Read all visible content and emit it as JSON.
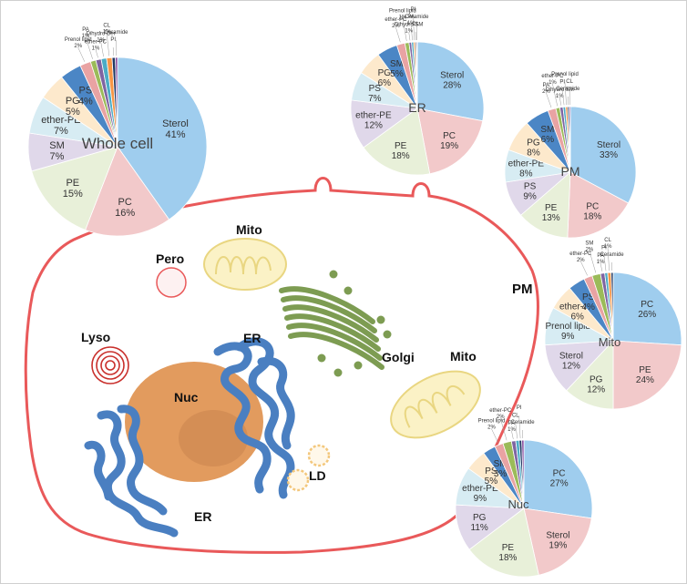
{
  "colors": {
    "membrane": "#e9595a",
    "er": "#4a7fc1",
    "er_dark": "#26527e",
    "nucleus": "#e29b5e",
    "nucleolus": "#c8834f",
    "mito_fill": "#fbf2c6",
    "mito_stroke": "#e9d681",
    "golgi": "#7d9c52",
    "lyso": "#c9302c",
    "ld": "#f3c77c"
  },
  "organelle_labels": {
    "pero": "Pero",
    "mito_top": "Mito",
    "mito_right": "Mito",
    "lyso": "Lyso",
    "er_top": "ER",
    "er_bottom": "ER",
    "nuc": "Nuc",
    "golgi": "Golgi",
    "ld": "LD",
    "pm": "PM"
  },
  "chart_data": [
    {
      "type": "pie",
      "title": "Whole cell",
      "slices": [
        {
          "label": "Sterol",
          "pct": "41%",
          "value": 41,
          "color": "#9fcdee"
        },
        {
          "label": "PC",
          "pct": "16%",
          "value": 16,
          "color": "#f2c9ca"
        },
        {
          "label": "PE",
          "pct": "15%",
          "value": 15,
          "color": "#e8f0d9"
        },
        {
          "label": "SM",
          "pct": "7%",
          "value": 7,
          "color": "#e0d8ea"
        },
        {
          "label": "ether-PE",
          "pct": "7%",
          "value": 7,
          "color": "#d7ecf3"
        },
        {
          "label": "PG",
          "pct": "5%",
          "value": 5,
          "color": "#fde9cc"
        },
        {
          "label": "PS",
          "pct": "4%",
          "value": 4,
          "color": "#4b86c5"
        },
        {
          "label": "Prenol lipid",
          "pct": "2%",
          "value": 2,
          "color": "#e9a3a3"
        },
        {
          "label": "PA",
          "pct": "1%",
          "value": 1,
          "color": "#9bbb59"
        },
        {
          "label": "ether-PC",
          "pct": "1%",
          "value": 1,
          "color": "#7f64a2"
        },
        {
          "label": "Dihydro Cer",
          "pct": "1%",
          "value": 1,
          "color": "#4bacc6"
        },
        {
          "label": "CL",
          "pct": "1%",
          "value": 1,
          "color": "#f79646"
        },
        {
          "label": "PI",
          "pct": "",
          "value": 0.6,
          "color": "#1f3864"
        },
        {
          "label": "Ceramide",
          "pct": "",
          "value": 0.4,
          "color": "#7f3f98"
        }
      ]
    },
    {
      "type": "pie",
      "title": "ER",
      "slices": [
        {
          "label": "Sterol",
          "pct": "28%",
          "value": 28,
          "color": "#9fcdee"
        },
        {
          "label": "PC",
          "pct": "19%",
          "value": 19,
          "color": "#f2c9ca"
        },
        {
          "label": "PE",
          "pct": "18%",
          "value": 18,
          "color": "#e8f0d9"
        },
        {
          "label": "ether-PE",
          "pct": "12%",
          "value": 12,
          "color": "#e0d8ea"
        },
        {
          "label": "PS",
          "pct": "7%",
          "value": 7,
          "color": "#d7ecf3"
        },
        {
          "label": "PG",
          "pct": "6%",
          "value": 6,
          "color": "#fde9cc"
        },
        {
          "label": "SM",
          "pct": "5%",
          "value": 5,
          "color": "#4b86c5"
        },
        {
          "label": "ether-PC",
          "pct": "2%",
          "value": 2,
          "color": "#e9a3a3"
        },
        {
          "label": "Prenol lipid",
          "pct": "1%",
          "value": 1,
          "color": "#9bbb59"
        },
        {
          "label": "Dihydro SM",
          "pct": "1%",
          "value": 0.6,
          "color": "#7f64a2"
        },
        {
          "label": "PA",
          "pct": "1%",
          "value": 0.5,
          "color": "#4bacc6"
        },
        {
          "label": "PI",
          "pct": "",
          "value": 0.4,
          "color": "#f79646"
        },
        {
          "label": "CL",
          "pct": "",
          "value": 0.3,
          "color": "#1f3864"
        },
        {
          "label": "Ceramide",
          "pct": "",
          "value": 0.2,
          "color": "#7f3f98"
        }
      ]
    },
    {
      "type": "pie",
      "title": "PM",
      "slices": [
        {
          "label": "Sterol",
          "pct": "33%",
          "value": 33,
          "color": "#9fcdee"
        },
        {
          "label": "PC",
          "pct": "18%",
          "value": 18,
          "color": "#f2c9ca"
        },
        {
          "label": "PE",
          "pct": "13%",
          "value": 13,
          "color": "#e8f0d9"
        },
        {
          "label": "PS",
          "pct": "9%",
          "value": 9,
          "color": "#e0d8ea"
        },
        {
          "label": "ether-PE",
          "pct": "8%",
          "value": 8,
          "color": "#d7ecf3"
        },
        {
          "label": "PG",
          "pct": "8%",
          "value": 8,
          "color": "#fde9cc"
        },
        {
          "label": "SM",
          "pct": "6%",
          "value": 6,
          "color": "#4b86c5"
        },
        {
          "label": "PA",
          "pct": "2%",
          "value": 2,
          "color": "#e9a3a3"
        },
        {
          "label": "ether-PC",
          "pct": "1%",
          "value": 1,
          "color": "#9bbb59"
        },
        {
          "label": "Dihydro SM",
          "pct": "1%",
          "value": 0.8,
          "color": "#7f64a2"
        },
        {
          "label": "PI",
          "pct": "",
          "value": 0.6,
          "color": "#4bacc6"
        },
        {
          "label": "Prenol lipid",
          "pct": "",
          "value": 0.5,
          "color": "#f79646"
        },
        {
          "label": "Ceramide",
          "pct": "",
          "value": 0.4,
          "color": "#1f3864"
        },
        {
          "label": "CL",
          "pct": "",
          "value": 0.3,
          "color": "#7f3f98"
        }
      ]
    },
    {
      "type": "pie",
      "title": "Mito",
      "slices": [
        {
          "label": "PC",
          "pct": "26%",
          "value": 26,
          "color": "#9fcdee"
        },
        {
          "label": "PE",
          "pct": "24%",
          "value": 24,
          "color": "#f2c9ca"
        },
        {
          "label": "PG",
          "pct": "12%",
          "value": 12,
          "color": "#e8f0d9"
        },
        {
          "label": "Sterol",
          "pct": "12%",
          "value": 12,
          "color": "#e0d8ea"
        },
        {
          "label": "Prenol lipid",
          "pct": "9%",
          "value": 9,
          "color": "#d7ecf3"
        },
        {
          "label": "ether-PE",
          "pct": "6%",
          "value": 6,
          "color": "#fde9cc"
        },
        {
          "label": "PS",
          "pct": "4%",
          "value": 4,
          "color": "#4b86c5"
        },
        {
          "label": "ether-PC",
          "pct": "2%",
          "value": 2,
          "color": "#e9a3a3"
        },
        {
          "label": "SM",
          "pct": "2%",
          "value": 2,
          "color": "#9bbb59"
        },
        {
          "label": "PA",
          "pct": "1%",
          "value": 1,
          "color": "#7f64a2"
        },
        {
          "label": "PI",
          "pct": "",
          "value": 0.7,
          "color": "#4bacc6"
        },
        {
          "label": "CL",
          "pct": "1%",
          "value": 0.8,
          "color": "#f79646"
        },
        {
          "label": "Ceramide",
          "pct": "",
          "value": 0.5,
          "color": "#1f3864"
        }
      ]
    },
    {
      "type": "pie",
      "title": "Nuc",
      "slices": [
        {
          "label": "PC",
          "pct": "27%",
          "value": 27,
          "color": "#9fcdee"
        },
        {
          "label": "Sterol",
          "pct": "19%",
          "value": 19,
          "color": "#f2c9ca"
        },
        {
          "label": "PE",
          "pct": "18%",
          "value": 18,
          "color": "#e8f0d9"
        },
        {
          "label": "PG",
          "pct": "11%",
          "value": 11,
          "color": "#e0d8ea"
        },
        {
          "label": "ether-PE",
          "pct": "9%",
          "value": 9,
          "color": "#d7ecf3"
        },
        {
          "label": "PS",
          "pct": "5%",
          "value": 5,
          "color": "#fde9cc"
        },
        {
          "label": "SM",
          "pct": "3%",
          "value": 3,
          "color": "#4b86c5"
        },
        {
          "label": "Prenol lipid",
          "pct": "2%",
          "value": 2,
          "color": "#e9a3a3"
        },
        {
          "label": "ether-PC",
          "pct": "2%",
          "value": 2,
          "color": "#9bbb59"
        },
        {
          "label": "PA",
          "pct": "1%",
          "value": 1,
          "color": "#7f64a2"
        },
        {
          "label": "CL",
          "pct": "",
          "value": 0.8,
          "color": "#4bacc6"
        },
        {
          "label": "PI",
          "pct": "",
          "value": 0.6,
          "color": "#1f3864"
        },
        {
          "label": "Ceramide",
          "pct": "",
          "value": 0.5,
          "color": "#7f3f98"
        }
      ]
    }
  ]
}
